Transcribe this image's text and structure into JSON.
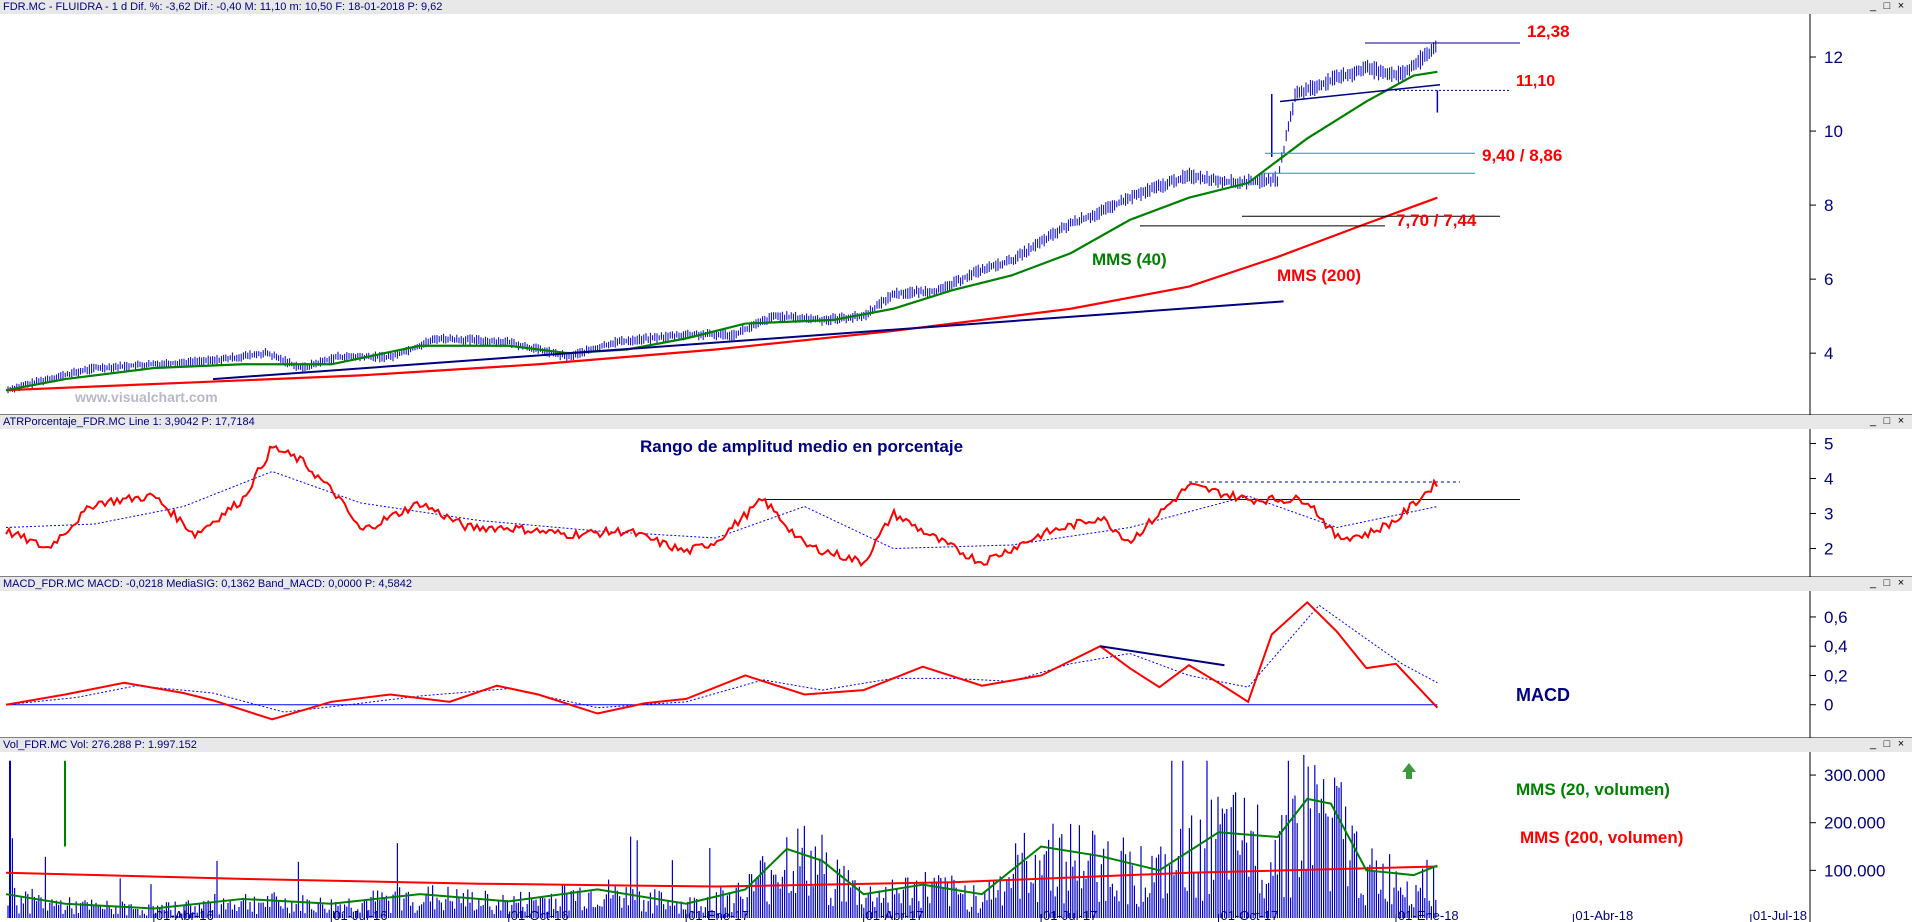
{
  "panels": {
    "price": {
      "header": "FDR.MC - FLUIDRA -  1 d  Dif. %: -3,62  Dif.: -0,40  M: 11,10  m: 10,50  F: 18-01-2018  P: 9,62",
      "watermark": "www.visualchart.com",
      "annotations": {
        "high": "12,38",
        "res": "11,10",
        "sup1": "9,40 / 8,86",
        "sup2": "7,70 / 7,44",
        "mms40": "MMS (40)",
        "mms200": "MMS (200)"
      }
    },
    "atr": {
      "header": "ATRPorcentaje_FDR.MC  Line 1: 3,9042  P: 17,7184",
      "title": "Rango de amplitud medio en porcentaje"
    },
    "macd": {
      "header": "MACD_FDR.MC  MACD: -0,0218  MediaSIG: 0,1362  Band_MACD: 0,0000  P: 4,5842",
      "title": "MACD"
    },
    "vol": {
      "header": "Vol_FDR.MC  Vol: 276.288  P: 1.997.152",
      "labels": {
        "mms20": "MMS (20, volumen)",
        "mms200": "MMS (200, volumen)"
      }
    }
  },
  "window_controls": [
    "_",
    "□",
    "×"
  ],
  "colors": {
    "price": "#0000cc",
    "mms40": "#008000",
    "mms200": "#ff0000",
    "trend": "#000080",
    "annotation_red": "#ff0000",
    "annotation_green": "#008000",
    "annotation_navy": "#000080"
  },
  "chart_data": [
    {
      "type": "line",
      "name": "price",
      "x_ticks": [
        "01-Abr-16",
        "01-Jul-16",
        "01-Oct-16",
        "01-Ene-17",
        "01-Abr-17",
        "01-Jul-17",
        "01-Oct-17",
        "01-Ene-18",
        "01-Abr-18",
        "01-Jul-18"
      ],
      "x_tick_months": [
        2.5,
        5.5,
        8.5,
        11.5,
        14.5,
        17.5,
        20.5,
        23.5,
        26.5,
        29.5
      ],
      "y_ticks": [
        "4",
        "6",
        "8",
        "10",
        "12"
      ],
      "ylim": [
        2.6,
        13.0
      ],
      "xlim_months": [
        0,
        32
      ],
      "series": [
        {
          "key": "price",
          "x": [
            0,
            0.7,
            1.5,
            2.5,
            3.5,
            4.4,
            5.0,
            5.6,
            6.5,
            7.3,
            8.5,
            9.5,
            10.3,
            11.5,
            12.3,
            13.0,
            13.8,
            14.5,
            15.0,
            15.8,
            16.4,
            17.0,
            17.5,
            18.0,
            18.5,
            19.0,
            19.5,
            20.0,
            20.8,
            21.5,
            21.8,
            22.3,
            23.0,
            23.6,
            24.2
          ],
          "y": [
            3.0,
            3.3,
            3.6,
            3.7,
            3.8,
            4.0,
            3.6,
            3.9,
            3.9,
            4.4,
            4.3,
            3.9,
            4.3,
            4.5,
            4.5,
            5.0,
            4.9,
            5.0,
            5.6,
            5.7,
            6.2,
            6.5,
            7.0,
            7.5,
            7.8,
            8.2,
            8.5,
            8.8,
            8.6,
            8.7,
            11.0,
            11.3,
            11.7,
            11.5,
            12.3
          ]
        },
        {
          "key": "mms40",
          "x": [
            0,
            1.0,
            2.5,
            4.0,
            5.5,
            7.0,
            8.5,
            9.5,
            10.5,
            11.5,
            12.5,
            14.0,
            15.0,
            16.0,
            17.0,
            18.0,
            19.0,
            20.0,
            21.0,
            22.0,
            23.0,
            23.8,
            24.2
          ],
          "y": [
            3.0,
            3.3,
            3.6,
            3.7,
            3.7,
            4.2,
            4.2,
            4.0,
            4.1,
            4.4,
            4.8,
            4.9,
            5.2,
            5.7,
            6.1,
            6.7,
            7.6,
            8.2,
            8.6,
            9.8,
            10.8,
            11.5,
            11.6
          ]
        },
        {
          "key": "mms200",
          "x": [
            0,
            3.0,
            6.0,
            9.0,
            12.0,
            15.0,
            18.0,
            20.0,
            21.5,
            23.0,
            24.2
          ],
          "y": [
            3.0,
            3.2,
            3.4,
            3.7,
            4.1,
            4.6,
            5.2,
            5.8,
            6.6,
            7.5,
            8.2
          ]
        },
        {
          "key": "trend",
          "x": [
            3.5,
            21.6
          ],
          "y": [
            3.3,
            5.4
          ]
        }
      ]
    },
    {
      "type": "line",
      "name": "atr",
      "y_ticks": [
        "2",
        "3",
        "4",
        "5"
      ],
      "ylim": [
        1.3,
        5.3
      ],
      "series": [
        {
          "key": "atr",
          "x": [
            0,
            0.7,
            1.5,
            2.5,
            3.2,
            4.0,
            4.5,
            5.0,
            5.6,
            6.0,
            7.0,
            7.8,
            8.5,
            9.5,
            10.5,
            11.5,
            12.0,
            12.8,
            13.5,
            14.5,
            15.0,
            15.8,
            16.5,
            17.5,
            18.5,
            19.0,
            20.0,
            21.0,
            22.0,
            22.5,
            23.0,
            23.5,
            24.2
          ],
          "y": [
            2.5,
            2.0,
            3.3,
            3.5,
            2.4,
            3.4,
            4.9,
            4.5,
            3.5,
            2.5,
            3.3,
            2.6,
            2.6,
            2.4,
            2.5,
            1.9,
            2.2,
            3.4,
            2.1,
            1.6,
            3.0,
            2.2,
            1.6,
            2.4,
            2.9,
            2.2,
            3.8,
            3.4,
            3.4,
            2.3,
            2.4,
            2.8,
            3.9
          ]
        },
        {
          "key": "atr_sig",
          "x": [
            0,
            1.5,
            3.0,
            4.5,
            6.0,
            8.0,
            10.0,
            12.0,
            13.5,
            15.0,
            17.0,
            19.0,
            21.0,
            22.5,
            24.2
          ],
          "y": [
            2.6,
            2.7,
            3.2,
            4.2,
            3.3,
            2.8,
            2.5,
            2.3,
            3.2,
            2.0,
            2.1,
            2.6,
            3.5,
            2.6,
            3.2
          ]
        }
      ]
    },
    {
      "type": "line",
      "name": "macd",
      "y_ticks": [
        "0",
        "0,2",
        "0,4",
        "0,6"
      ],
      "ylim": [
        -0.2,
        0.75
      ],
      "series": [
        {
          "key": "macd",
          "x": [
            0,
            1.0,
            2.0,
            3.0,
            3.5,
            4.5,
            5.5,
            6.5,
            7.5,
            8.3,
            9.0,
            10.0,
            10.8,
            11.5,
            12.5,
            13.5,
            14.5,
            15.5,
            16.5,
            17.5,
            18.5,
            19.0,
            19.5,
            20.0,
            20.5,
            21.0,
            21.4,
            22.0,
            22.5,
            23.0,
            23.5,
            24.2
          ],
          "y": [
            0.0,
            0.07,
            0.15,
            0.08,
            0.03,
            -0.1,
            0.02,
            0.07,
            0.02,
            0.13,
            0.07,
            -0.06,
            0.01,
            0.04,
            0.2,
            0.07,
            0.1,
            0.26,
            0.13,
            0.2,
            0.4,
            0.25,
            0.12,
            0.27,
            0.15,
            0.02,
            0.48,
            0.7,
            0.5,
            0.25,
            0.28,
            -0.02
          ]
        },
        {
          "key": "macd_sig",
          "x": [
            0,
            1.2,
            2.2,
            3.5,
            4.7,
            5.8,
            7.0,
            8.5,
            10.0,
            11.5,
            12.8,
            13.8,
            15.0,
            16.0,
            17.0,
            18.0,
            19.0,
            20.0,
            21.0,
            21.6,
            22.2,
            23.0,
            23.6,
            24.2
          ],
          "y": [
            0.0,
            0.05,
            0.13,
            0.08,
            -0.05,
            0.0,
            0.06,
            0.11,
            -0.02,
            0.02,
            0.17,
            0.1,
            0.18,
            0.18,
            0.16,
            0.28,
            0.35,
            0.2,
            0.12,
            0.4,
            0.68,
            0.45,
            0.28,
            0.15
          ]
        }
      ]
    },
    {
      "type": "bar",
      "name": "volume",
      "y_ticks": [
        "100.000",
        "200.000",
        "300.000"
      ],
      "ylim": [
        0,
        340000
      ],
      "series": [
        {
          "key": "mms20_vol",
          "x": [
            0,
            1.0,
            2.5,
            4.0,
            5.5,
            7.0,
            8.5,
            10.0,
            11.5,
            12.5,
            13.2,
            13.8,
            14.5,
            15.5,
            16.5,
            17.5,
            18.5,
            19.5,
            20.5,
            21.5,
            22.0,
            22.4,
            23.0,
            23.8,
            24.2
          ],
          "y": [
            50000,
            30000,
            20000,
            40000,
            30000,
            50000,
            35000,
            60000,
            30000,
            60000,
            145000,
            120000,
            50000,
            70000,
            50000,
            150000,
            130000,
            100000,
            180000,
            170000,
            250000,
            240000,
            100000,
            90000,
            110000
          ]
        },
        {
          "key": "mms200_vol",
          "x": [
            0,
            4.0,
            8.0,
            12.0,
            16.0,
            20.0,
            24.2
          ],
          "y": [
            95000,
            82000,
            72000,
            66000,
            75000,
            95000,
            108000
          ]
        }
      ]
    }
  ]
}
